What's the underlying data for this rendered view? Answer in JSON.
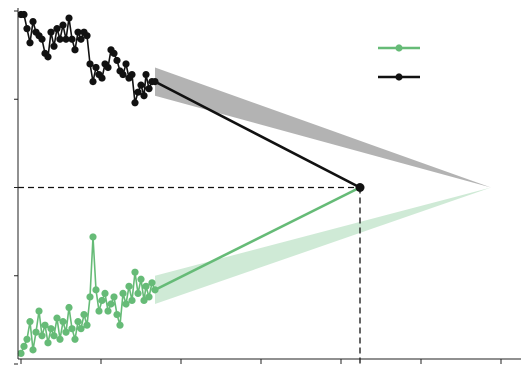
{
  "chart_data": {
    "type": "line",
    "title": "",
    "xlabel": "",
    "ylabel": "",
    "xlim": [
      0,
      100
    ],
    "ylim": [
      0,
      100
    ],
    "grid": false,
    "legend": {
      "position": "top-right",
      "entries": [
        "",
        ""
      ]
    },
    "colors": {
      "black_series": "#111111",
      "black_band": "#b3b3b3",
      "green_series": "#66bb77",
      "green_band": "#cfead6",
      "reference_line": "#111111"
    },
    "x_ticks": [
      0,
      16,
      32,
      48,
      64,
      80,
      96
    ],
    "y_ticks": [
      0,
      25,
      50,
      75,
      100
    ],
    "series": [
      {
        "color": "#111111",
        "x": [
          0.0,
          0.6,
          1.2,
          1.8,
          2.4,
          3.0,
          3.6,
          4.2,
          4.8,
          5.4,
          6.0,
          6.6,
          7.2,
          7.8,
          8.4,
          9.0,
          9.6,
          10.2,
          10.8,
          11.4,
          12.0,
          12.6,
          13.2,
          13.8,
          14.4,
          15.0,
          15.6,
          16.2,
          16.8,
          17.4,
          18.0,
          18.6,
          19.2,
          19.8,
          20.4,
          21.0,
          21.6,
          22.2,
          22.8,
          23.4,
          24.0,
          24.6,
          25.0,
          25.6,
          26.2,
          26.8
        ],
        "values": [
          99,
          99,
          95,
          91,
          97,
          94,
          93,
          92,
          88,
          87,
          94,
          90,
          95,
          92,
          96,
          92,
          98,
          92,
          89,
          94,
          92,
          94,
          93,
          85,
          80,
          84,
          82,
          81,
          85,
          84,
          89,
          88,
          86,
          83,
          82,
          85,
          81,
          82,
          74,
          77,
          79,
          76,
          82,
          78,
          80,
          80
        ]
      },
      {
        "color": "#66bb77",
        "x": [
          0.0,
          0.6,
          1.2,
          1.8,
          2.4,
          3.0,
          3.6,
          4.2,
          4.8,
          5.4,
          6.0,
          6.6,
          7.2,
          7.8,
          8.4,
          9.0,
          9.6,
          10.2,
          10.8,
          11.4,
          12.0,
          12.6,
          13.2,
          13.8,
          14.4,
          15.0,
          15.6,
          16.2,
          16.8,
          17.4,
          18.0,
          18.6,
          19.2,
          19.8,
          20.4,
          21.0,
          21.6,
          22.2,
          22.8,
          23.4,
          24.0,
          24.6,
          25.0,
          25.6,
          26.2,
          26.8
        ],
        "values": [
          3,
          5,
          7,
          12,
          4,
          9,
          15,
          8,
          11,
          6,
          10,
          8,
          13,
          7,
          12,
          9,
          16,
          10,
          7,
          12,
          10,
          14,
          11,
          19,
          36,
          21,
          15,
          18,
          20,
          15,
          17,
          19,
          14,
          11,
          20,
          17,
          22,
          18,
          26,
          20,
          24,
          18,
          22,
          19,
          23,
          21
        ]
      }
    ],
    "trend": {
      "start": 26.8,
      "join_x": 67.8,
      "join_y": 50,
      "black_band_tip_x": 94,
      "green_band_tip_x": 94
    }
  }
}
